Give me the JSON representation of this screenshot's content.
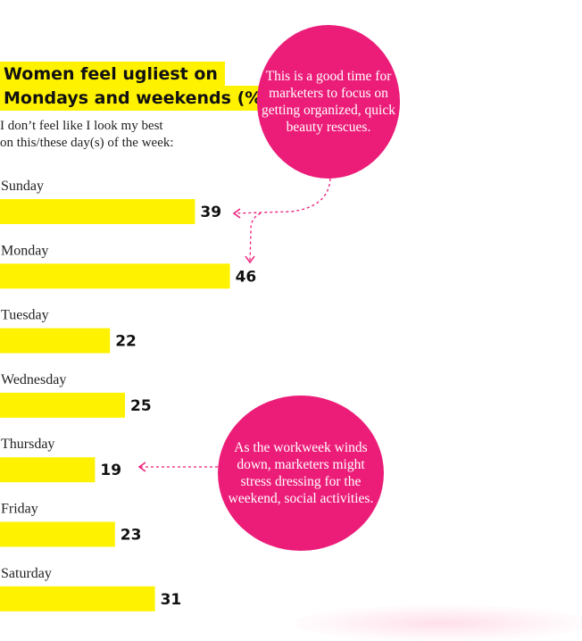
{
  "chart_data": {
    "type": "bar",
    "orientation": "horizontal",
    "title_lines": [
      "Women feel ugliest on",
      "Mondays and weekends (%)"
    ],
    "subtitle": "I don’t feel like I look my best\non this/these day(s) of the week:",
    "categories": [
      "Sunday",
      "Monday",
      "Tuesday",
      "Wednesday",
      "Thursday",
      "Friday",
      "Saturday"
    ],
    "values": [
      39,
      46,
      22,
      25,
      19,
      23,
      31
    ],
    "bar_color": "#fff200",
    "grid": false,
    "annotations": [
      {
        "text": "This is a good time for marketers to focus on getting organized, quick beauty rescues.",
        "color": "#ec1d79",
        "points_to": [
          "Sunday",
          "Monday"
        ]
      },
      {
        "text": "As the workweek winds down, marketers might stress dressing for the weekend, social activities.",
        "color": "#ec1d79",
        "points_to": [
          "Thursday"
        ]
      }
    ]
  }
}
